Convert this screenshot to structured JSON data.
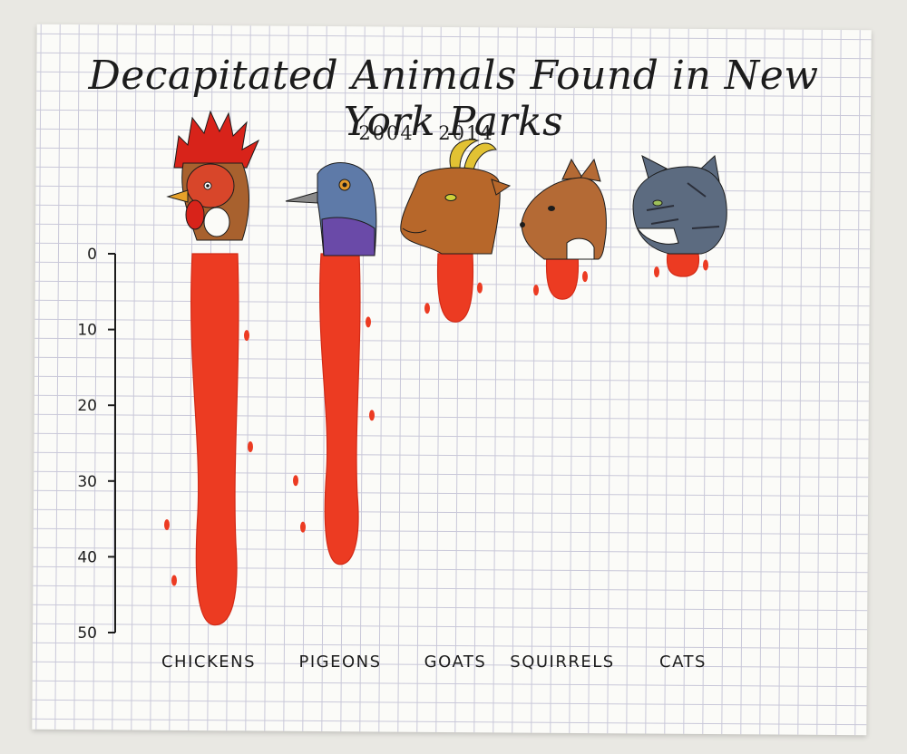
{
  "chart_data": {
    "type": "bar",
    "title": "Decapitated Animals Found in New York Parks",
    "subtitle": "2004 - 2014",
    "categories": [
      "CHICKENS",
      "PIGEONS",
      "GOATS",
      "SQUIRRELS",
      "CATS"
    ],
    "values": [
      49,
      41,
      9,
      6,
      3
    ],
    "ylim": [
      0,
      50
    ],
    "y_ticks": [
      "0",
      "10",
      "20",
      "30",
      "40",
      "50"
    ],
    "y_axis_inverted": true,
    "grid": true,
    "colors": {
      "blood": "#ec3b22",
      "ink": "#1c1c1c",
      "chicken_comb": "#d8231a",
      "chicken_feathers": "#a8612e",
      "pigeon": "#5e7aa8",
      "pigeon_neck": "#6a4aa8",
      "goat": "#b7672a",
      "goat_horns": "#e2c233",
      "squirrel": "#b46a35",
      "cat": "#5c6b80"
    },
    "icons": [
      "chicken-head-icon",
      "pigeon-head-icon",
      "goat-head-icon",
      "squirrel-head-icon",
      "cat-head-icon"
    ]
  }
}
